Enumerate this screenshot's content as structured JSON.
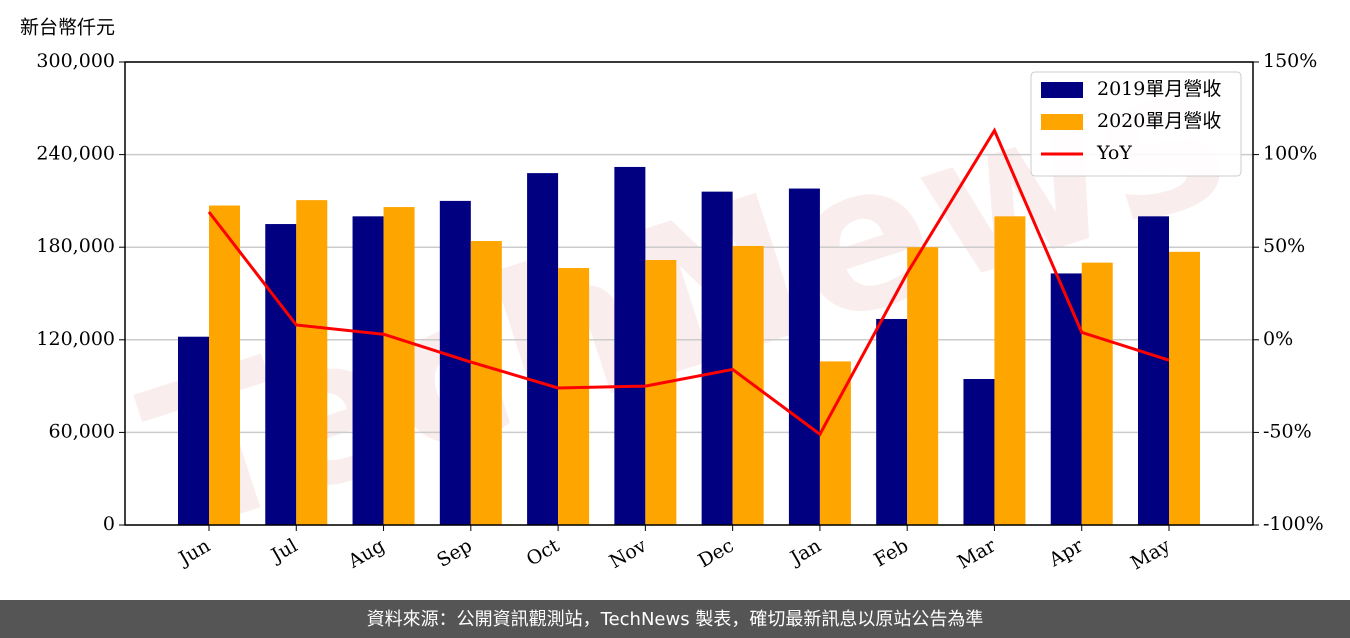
{
  "chart_data": {
    "type": "bar-line",
    "y_label": "新台幣仟元",
    "watermark": "TechNews",
    "footer": "資料來源：公開資訊觀測站，TechNews 製表，確切最新訊息以原站公告為準",
    "categories": [
      "Jun",
      "Jul",
      "Aug",
      "Sep",
      "Oct",
      "Nov",
      "Dec",
      "Jan",
      "Feb",
      "Mar",
      "Apr",
      "May"
    ],
    "series": [
      {
        "name": "2019單月營收",
        "color": "#000080",
        "values": [
          122000,
          195000,
          200000,
          210000,
          228000,
          232000,
          216000,
          218000,
          133500,
          94600,
          163000,
          200000
        ]
      },
      {
        "name": "2020單月營收",
        "color": "#ffa500",
        "values": [
          207000,
          210500,
          206000,
          184000,
          166500,
          171700,
          180800,
          106000,
          180000,
          200000,
          170000,
          177000
        ]
      },
      {
        "name": "YoY",
        "color": "#ff0000",
        "axis": "y2",
        "kind": "line",
        "values": [
          69,
          8,
          3,
          -12,
          -26,
          -25,
          -16,
          -51,
          36,
          113,
          4,
          -11
        ]
      }
    ],
    "ylim": [
      0,
      300000
    ],
    "yticks": [
      0,
      {
        "value": 60000,
        "label": "60,000"
      },
      {
        "value": 120000,
        "label": "120,000"
      },
      {
        "value": 180000,
        "label": "180,000"
      },
      {
        "value": 240000,
        "label": "240,000"
      },
      {
        "value": 300000,
        "label": "300,000"
      }
    ],
    "y2lim": [
      -100,
      150
    ],
    "y2ticks": [
      {
        "value": -100,
        "label": "-100%"
      },
      {
        "value": -50,
        "label": "-50%"
      },
      {
        "value": 0,
        "label": "0%"
      },
      {
        "value": 50,
        "label": "50%"
      },
      {
        "value": 100,
        "label": "100%"
      },
      {
        "value": 150,
        "label": "150%"
      }
    ],
    "grid": true,
    "legend": "upper right"
  }
}
